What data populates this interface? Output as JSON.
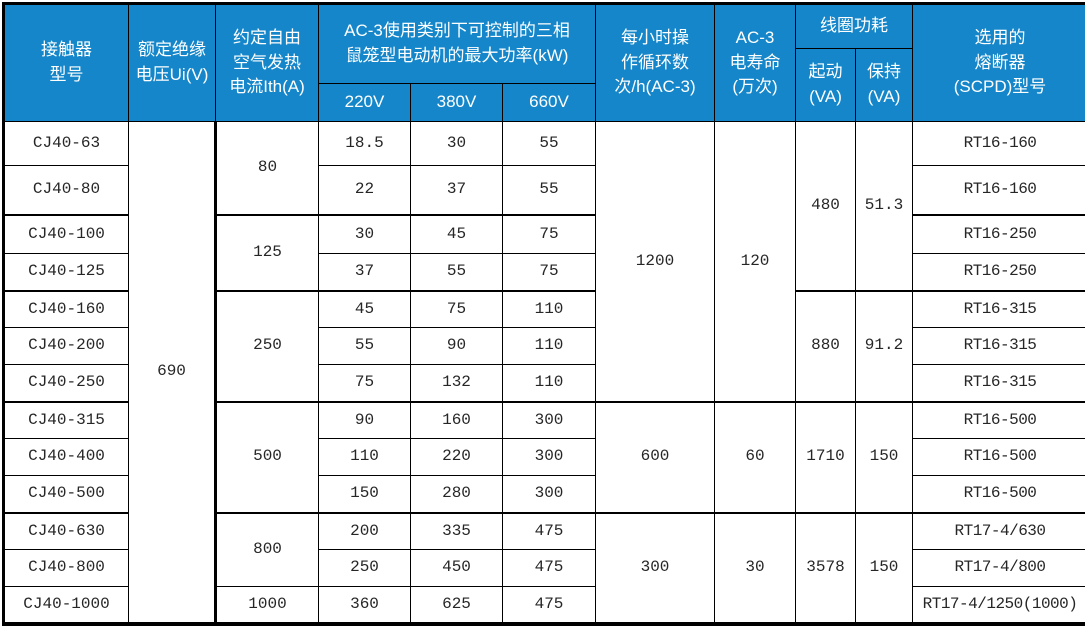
{
  "header": {
    "model": "接触器\n型号",
    "rated_voltage": "额定绝缘\n电压Ui(V)",
    "thermal_current": "约定自由\n空气发热\n电流Ith(A)",
    "max_power": "AC-3使用类别下可控制的三相\n鼠笼型电动机的最大功率(kW)",
    "v220": "220V",
    "v380": "380V",
    "v660": "660V",
    "cycles": "每小时操\n作循环数\n次/h(AC-3)",
    "life": "AC-3\n电寿命\n(万次)",
    "coil_power": "线圈功耗",
    "start": "起动\n(VA)",
    "hold": "保持\n(VA)",
    "fuse": "选用的\n熔断器\n(SCPD)型号"
  },
  "shared": {
    "rated_voltage": "690"
  },
  "rows": [
    {
      "model": "CJ40-63",
      "ith": "80",
      "p220": "18.5",
      "p380": "30",
      "p660": "55",
      "cycles": "1200",
      "life": "120",
      "start": "480",
      "hold": "51.3",
      "fuse": "RT16-160"
    },
    {
      "model": "CJ40-80",
      "p220": "22",
      "p380": "37",
      "p660": "55",
      "fuse": "RT16-160"
    },
    {
      "model": "CJ40-100",
      "ith": "125",
      "p220": "30",
      "p380": "45",
      "p660": "75",
      "fuse": "RT16-250"
    },
    {
      "model": "CJ40-125",
      "p220": "37",
      "p380": "55",
      "p660": "75",
      "fuse": "RT16-250"
    },
    {
      "model": "CJ40-160",
      "ith": "250",
      "p220": "45",
      "p380": "75",
      "p660": "110",
      "start": "880",
      "hold": "91.2",
      "fuse": "RT16-315"
    },
    {
      "model": "CJ40-200",
      "p220": "55",
      "p380": "90",
      "p660": "110",
      "fuse": "RT16-315"
    },
    {
      "model": "CJ40-250",
      "p220": "75",
      "p380": "132",
      "p660": "110",
      "fuse": "RT16-315"
    },
    {
      "model": "CJ40-315",
      "ith": "500",
      "p220": "90",
      "p380": "160",
      "p660": "300",
      "cycles": "600",
      "life": "60",
      "start": "1710",
      "hold": "150",
      "fuse": "RT16-500"
    },
    {
      "model": "CJ40-400",
      "p220": "110",
      "p380": "220",
      "p660": "300",
      "fuse": "RT16-500"
    },
    {
      "model": "CJ40-500",
      "p220": "150",
      "p380": "280",
      "p660": "300",
      "fuse": "RT16-500"
    },
    {
      "model": "CJ40-630",
      "ith": "800",
      "p220": "200",
      "p380": "335",
      "p660": "475",
      "cycles": "300",
      "life": "30",
      "start": "3578",
      "hold": "150",
      "fuse": "RT17-4/630"
    },
    {
      "model": "CJ40-800",
      "p220": "250",
      "p380": "450",
      "p660": "475",
      "fuse": "RT17-4/800"
    },
    {
      "model": "CJ40-1000",
      "ith": "1000",
      "p220": "360",
      "p380": "625",
      "p660": "475",
      "fuse": "RT17-4/1250(1000)"
    }
  ],
  "colors": {
    "header_bg": "#1486c9",
    "header_text": "#ffffff",
    "body_text": "#262626",
    "border": "#000000"
  }
}
